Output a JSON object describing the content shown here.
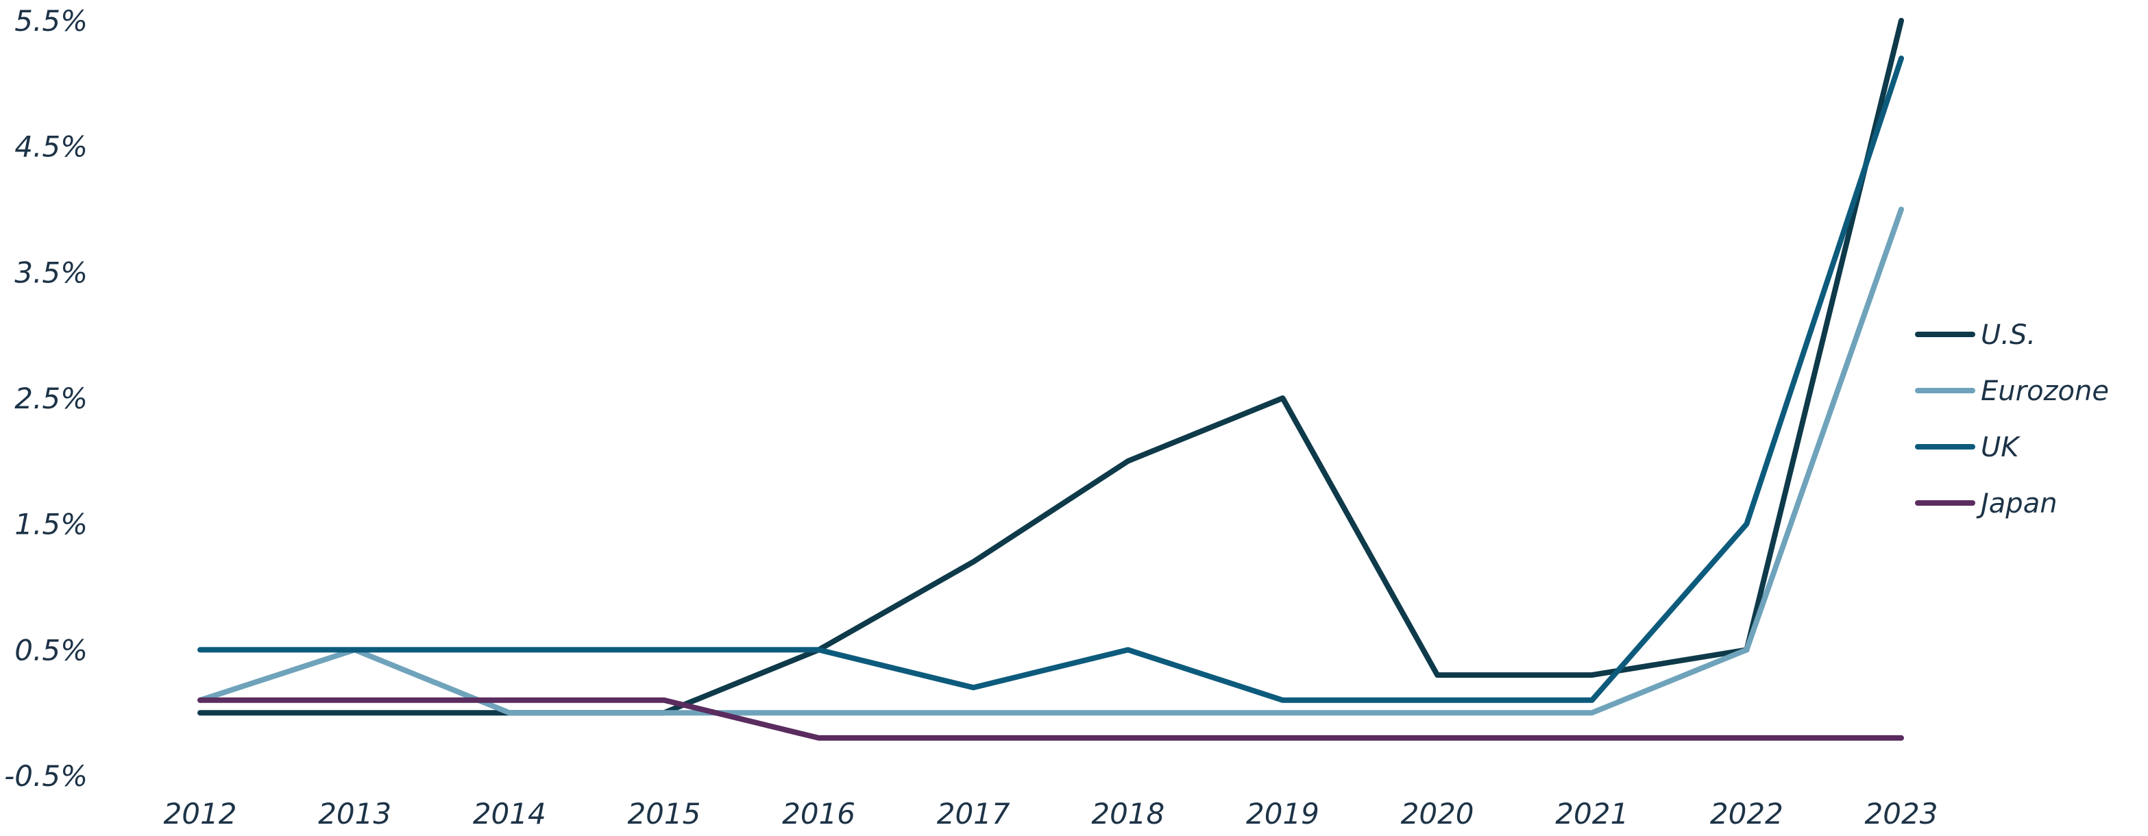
{
  "chart_data": {
    "type": "line",
    "title": "",
    "xlabel": "",
    "ylabel": "",
    "categories": [
      "2012",
      "2013",
      "2014",
      "2015",
      "2016",
      "2017",
      "2018",
      "2019",
      "2020",
      "2021",
      "2022",
      "2023"
    ],
    "y_ticks": [
      "-0.5%",
      "0.5%",
      "1.5%",
      "2.5%",
      "3.5%",
      "4.5%",
      "5.5%"
    ],
    "y_tick_values": [
      -0.5,
      0.5,
      1.5,
      2.5,
      3.5,
      4.5,
      5.5
    ],
    "ylim": [
      -0.5,
      5.5
    ],
    "grid": false,
    "legend_position": "right",
    "series": [
      {
        "name": "U.S.",
        "color": "#0e3a4a",
        "values": [
          0.0,
          0.0,
          0.0,
          0.0,
          0.5,
          1.2,
          2.0,
          2.5,
          0.3,
          0.3,
          0.5,
          5.5
        ]
      },
      {
        "name": "Eurozone",
        "color": "#6fa3bb",
        "values": [
          0.1,
          0.5,
          0.0,
          0.0,
          0.0,
          0.0,
          0.0,
          0.0,
          0.0,
          0.0,
          0.5,
          4.0
        ]
      },
      {
        "name": "UK",
        "color": "#0d5b7c",
        "values": [
          0.5,
          0.5,
          0.5,
          0.5,
          0.5,
          0.2,
          0.5,
          0.1,
          0.1,
          0.1,
          1.5,
          5.2
        ]
      },
      {
        "name": "Japan",
        "color": "#5a2c5f",
        "values": [
          0.1,
          0.1,
          0.1,
          0.1,
          -0.2,
          -0.2,
          -0.2,
          -0.2,
          -0.2,
          -0.2,
          -0.2,
          -0.2
        ]
      }
    ]
  }
}
